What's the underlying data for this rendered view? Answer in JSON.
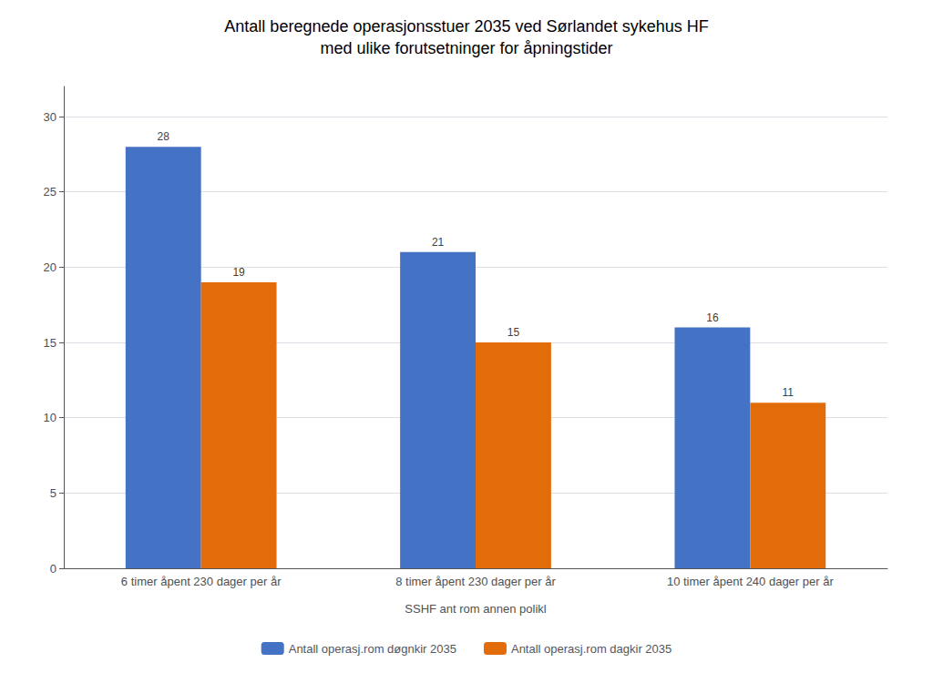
{
  "chart_data": {
    "type": "bar",
    "title": "Antall beregnede operasjonsstuer 2035 ved Sørlandet sykehus HF\nmed ulike forutsetninger for åpningstider",
    "xlabel": "SSHF ant rom annen polikl",
    "categories": [
      "6 timer åpent 230 dager per år",
      "8 timer åpent 230 dager per år",
      "10 timer åpent 240 dager per år"
    ],
    "series": [
      {
        "name": "Antall operasj.rom døgnkir 2035",
        "color": "#4472C4",
        "values": [
          28,
          21,
          16
        ]
      },
      {
        "name": "Antall operasj.rom dagkir 2035",
        "color": "#E36C0A",
        "values": [
          19,
          15,
          11
        ]
      }
    ],
    "ylim": [
      0,
      32
    ],
    "yticks": [
      0,
      5,
      10,
      15,
      20,
      25,
      30
    ],
    "grid": true,
    "legend": "bottom",
    "data_labels": true
  }
}
